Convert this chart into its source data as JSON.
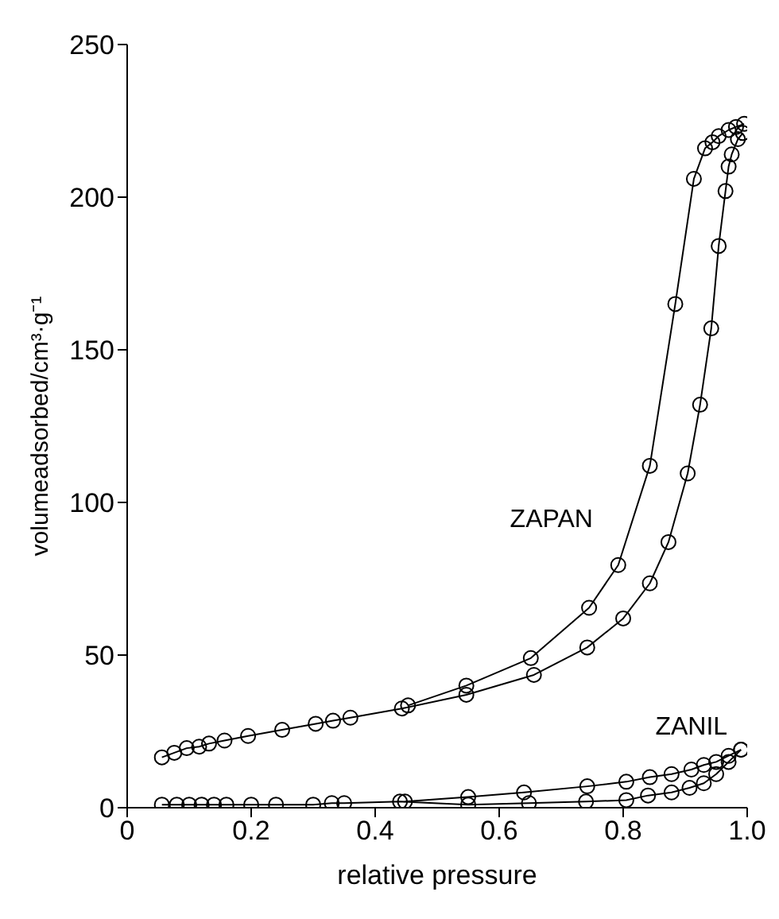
{
  "chart_data": {
    "type": "line",
    "xlabel": "relative pressure",
    "ylabel": "volumeadsorbed/cm³·g⁻¹",
    "xlim": [
      0,
      1
    ],
    "xticks": [
      0,
      0.2,
      0.4,
      0.6,
      0.8,
      {
        "value": 1,
        "label": "1.0"
      }
    ],
    "ylim": [
      0,
      250
    ],
    "yticks": [
      0,
      50,
      100,
      150,
      200,
      250
    ],
    "grid": false,
    "marker": "circle",
    "line_style": "solid",
    "series": [
      {
        "color": "#000000",
        "x": [
          0.056,
          0.076,
          0.096,
          0.116,
          0.132,
          0.157,
          0.195,
          0.25,
          0.304,
          0.332,
          0.36,
          0.443,
          0.547,
          0.656,
          0.742,
          0.8,
          0.843,
          0.873,
          0.904,
          0.924,
          0.942,
          0.954,
          0.965,
          0.97,
          0.975,
          0.985,
          0.993
        ],
        "values": [
          16.5,
          18,
          19.5,
          20,
          21,
          22,
          23.5,
          25.5,
          27.5,
          28.5,
          29.5,
          32.5,
          37,
          43.5,
          52.5,
          62,
          73.5,
          87,
          109.5,
          132,
          157,
          184,
          202,
          210,
          214,
          219,
          221
        ]
      },
      {
        "name": "ZAPAN",
        "color": "#000000",
        "x": [
          0.995,
          0.982,
          0.97,
          0.954,
          0.944,
          0.932,
          0.914,
          0.884,
          0.843,
          0.792,
          0.745,
          0.651,
          0.547,
          0.453
        ],
        "values": [
          224,
          223,
          222,
          220,
          218,
          216,
          206,
          165,
          112,
          79.5,
          65.5,
          49,
          40,
          33.5
        ]
      },
      {
        "color": "#000000",
        "x": [
          0.056,
          0.08,
          0.1,
          0.12,
          0.14,
          0.16,
          0.2,
          0.24,
          0.3,
          0.33,
          0.35,
          0.44,
          0.55,
          0.648,
          0.74,
          0.805,
          0.84,
          0.878,
          0.907,
          0.93,
          0.95,
          0.97,
          0.99
        ],
        "values": [
          1,
          1,
          1,
          1,
          1,
          1,
          1,
          1,
          1,
          1.5,
          1.5,
          2,
          1,
          1.5,
          2,
          2.5,
          4,
          5,
          6.5,
          8,
          11,
          15,
          19
        ]
      },
      {
        "name": "ZANIL",
        "color": "#000000",
        "x": [
          0.99,
          0.97,
          0.95,
          0.93,
          0.91,
          0.878,
          0.843,
          0.805,
          0.742,
          0.64,
          0.55,
          0.448
        ],
        "values": [
          19,
          17,
          15,
          14,
          12.5,
          11,
          10,
          8.5,
          7,
          5,
          3.5,
          2
        ]
      }
    ]
  }
}
